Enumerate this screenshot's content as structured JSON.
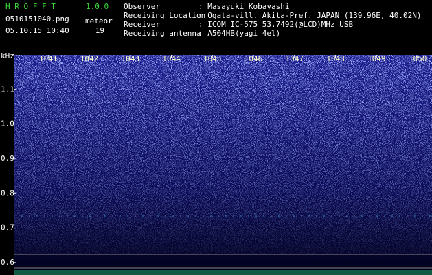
{
  "header": {
    "app_name": "H R O F F T",
    "version": "1.0.0",
    "file_name": "0510151040.png",
    "datetime": "05.10.15 10:40",
    "count_label": "meteor",
    "count": 19,
    "info": [
      {
        "label": "Observer",
        "value": ": Masayuki Kobayashi"
      },
      {
        "label": "Receiving Location",
        "value": ": Ogata-vill. Akita-Pref. JAPAN (139.96E, 40.02N)"
      },
      {
        "label": "Receiver",
        "value": ": ICOM IC-575 53.7492(@LCD)MHz USB"
      },
      {
        "label": "Receiving antenna",
        "value": ": A504HB(yagi 4el)"
      }
    ]
  },
  "spectrogram": {
    "y_unit": "kHz",
    "ylim": [
      0.564,
      1.2
    ],
    "yticks": [
      1.1,
      {
        "value": 1,
        "label": "1.0"
      },
      0.9,
      0.8,
      0.7,
      0.6
    ],
    "xlim": [
      1040.16,
      1050.35
    ],
    "xticks": [
      1041,
      1042,
      1043,
      1044,
      1045,
      1046,
      1047,
      1048,
      1049,
      1050
    ]
  }
}
